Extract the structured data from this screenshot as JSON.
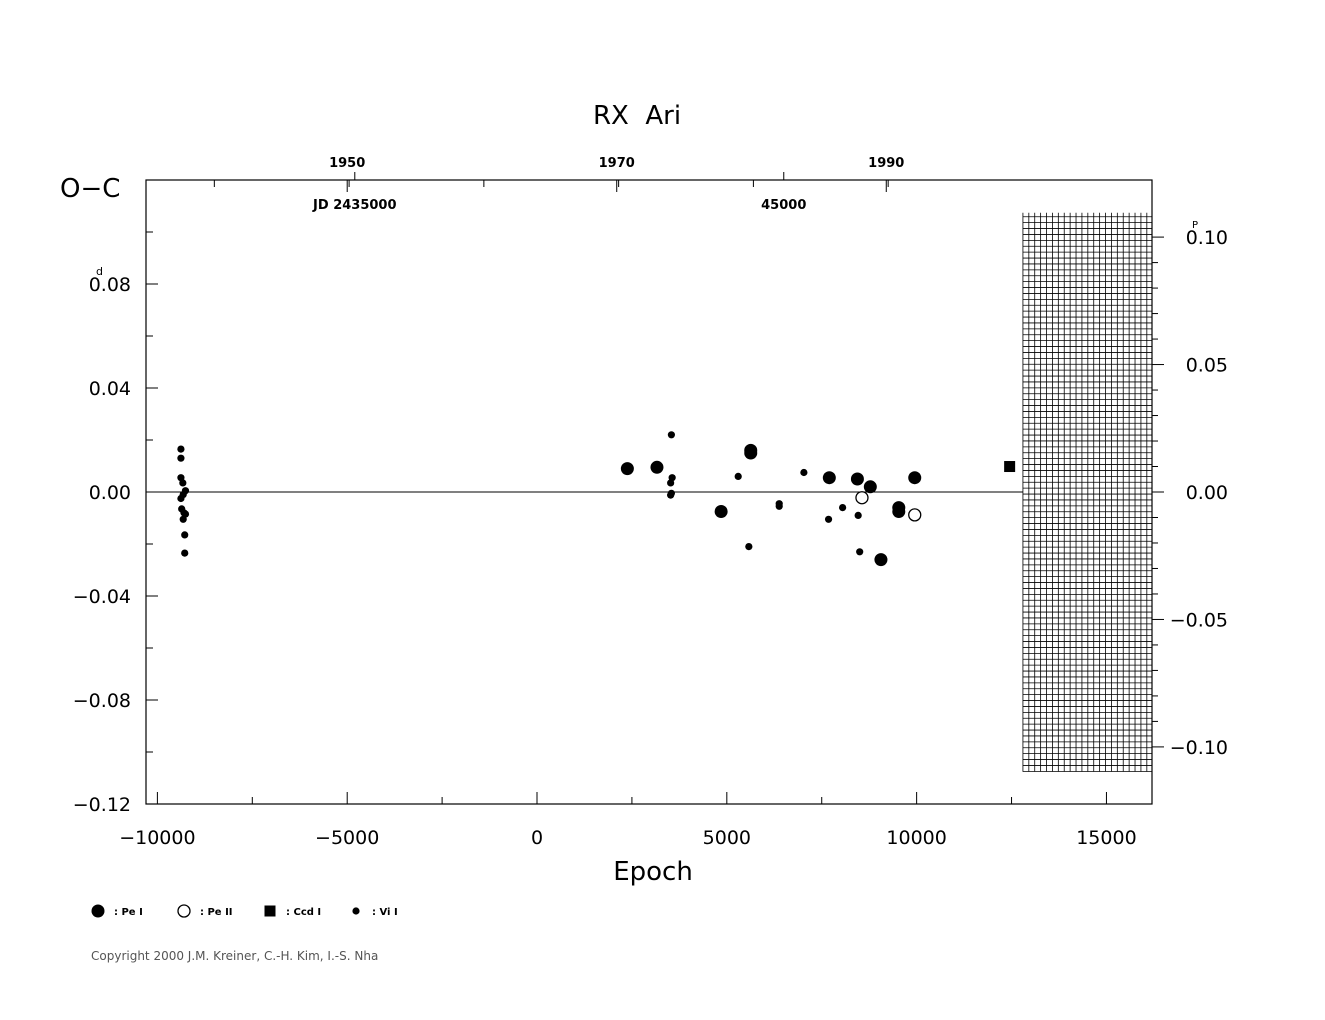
{
  "chart_data": {
    "type": "scatter",
    "title": "RX  Ari",
    "xlabel": "Epoch",
    "ylabel": "O−C",
    "xlim": [
      -10300,
      16200
    ],
    "ylim": [
      -0.12,
      0.12
    ],
    "x_ticks": [
      -10000,
      -5000,
      0,
      5000,
      10000,
      15000
    ],
    "x_tick_labels": [
      "−10000",
      "−5000",
      "0",
      "5000",
      "10000",
      "15000"
    ],
    "y_ticks": [
      -0.12,
      -0.08,
      -0.04,
      0.0,
      0.04,
      0.08
    ],
    "y_tick_labels": [
      "−0.12",
      "−0.08",
      "−0.04",
      "0.00",
      "0.04",
      "0.08"
    ],
    "y_unit_superscript": "d",
    "y_unit_tick": 0.08,
    "top_axis": {
      "year_ticks": [
        {
          "x": -5000,
          "label": "1950"
        },
        {
          "x": 2100,
          "label": "1970"
        },
        {
          "x": 9200,
          "label": "1990"
        }
      ],
      "jd_ticks": [
        {
          "x": -4800,
          "label": "JD 2435000"
        },
        {
          "x": 6500,
          "label": "45000"
        }
      ]
    },
    "right_axis": {
      "phase_per_day": 1.02,
      "ticks": [
        0.1,
        0.05,
        0.0,
        -0.05,
        -0.1
      ],
      "tick_labels": [
        "0.10",
        "0.05",
        "0.00",
        "−0.05",
        "−0.10"
      ],
      "unit_superscript": "P",
      "unit_tick": 0.1
    },
    "zero_line": true,
    "hatched_region": {
      "x_from": 12800,
      "x_to": 16200,
      "y_from": -0.1076,
      "y_to": 0.1074
    },
    "series": [
      {
        "name": ": Pe I",
        "marker": "filled-circle-large",
        "points": [
          [
            2380,
            0.009
          ],
          [
            3160,
            0.0095
          ],
          [
            4850,
            -0.0075
          ],
          [
            5630,
            0.016
          ],
          [
            5630,
            0.015
          ],
          [
            7700,
            0.0055
          ],
          [
            8440,
            0.005
          ],
          [
            8780,
            0.002
          ],
          [
            9060,
            -0.026
          ],
          [
            9530,
            -0.006
          ],
          [
            9530,
            -0.0075
          ],
          [
            9950,
            0.0055
          ]
        ]
      },
      {
        "name": ": Pe II",
        "marker": "open-circle",
        "points": [
          [
            8560,
            -0.0022
          ],
          [
            9950,
            -0.0088
          ]
        ]
      },
      {
        "name": ": Ccd I",
        "marker": "filled-square",
        "points": [
          [
            12450,
            0.0098
          ]
        ]
      },
      {
        "name": ": Vi I",
        "marker": "filled-circle-small",
        "points": [
          [
            -9380,
            0.0165
          ],
          [
            -9380,
            0.013
          ],
          [
            -9380,
            0.0055
          ],
          [
            -9330,
            0.0035
          ],
          [
            -9260,
            0.0005
          ],
          [
            -9320,
            -0.001
          ],
          [
            -9380,
            -0.0025
          ],
          [
            -9360,
            -0.0065
          ],
          [
            -9300,
            -0.008
          ],
          [
            -9260,
            -0.0085
          ],
          [
            -9320,
            -0.0105
          ],
          [
            -9280,
            -0.0165
          ],
          [
            -9280,
            -0.0235
          ],
          [
            3540,
            0.022
          ],
          [
            3560,
            0.0055
          ],
          [
            3520,
            0.0035
          ],
          [
            3540,
            -0.0005
          ],
          [
            3520,
            -0.0012
          ],
          [
            5300,
            0.006
          ],
          [
            5580,
            -0.021
          ],
          [
            6380,
            -0.0045
          ],
          [
            6380,
            -0.0055
          ],
          [
            7030,
            0.0075
          ],
          [
            7680,
            -0.0105
          ],
          [
            8050,
            -0.006
          ],
          [
            8460,
            -0.009
          ],
          [
            8500,
            -0.023
          ]
        ]
      }
    ],
    "legend_placement": "bottom-left"
  },
  "copyright": "Copyright 2000 J.M. Kreiner, C.-H. Kim, I.-S. Nha"
}
